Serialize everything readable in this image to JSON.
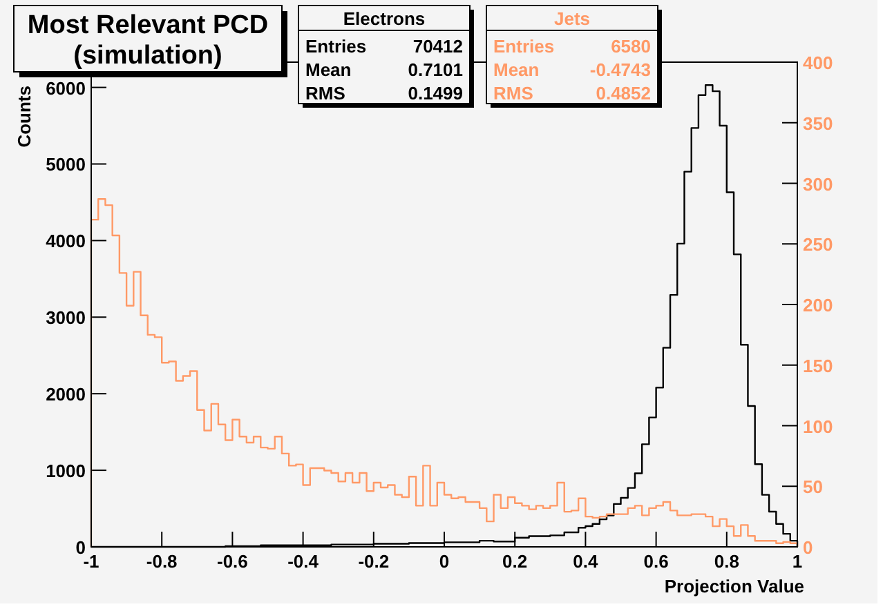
{
  "chart_data": {
    "type": "histogram",
    "title": "Most Relevant PCD\n(simulation)",
    "xlabel": "Projection Value",
    "ylabel": "Counts",
    "bins": [
      -1,
      -0.98,
      -0.96,
      -0.94,
      -0.92,
      -0.9,
      -0.88,
      -0.86,
      -0.84,
      -0.82,
      -0.8,
      -0.78,
      -0.76,
      -0.74,
      -0.72,
      -0.7,
      -0.68,
      -0.66,
      -0.64,
      -0.62,
      -0.6,
      -0.58,
      -0.56,
      -0.54,
      -0.52,
      -0.5,
      -0.48,
      -0.46,
      -0.44,
      -0.42,
      -0.4,
      -0.38,
      -0.36,
      -0.34,
      -0.32,
      -0.3,
      -0.28,
      -0.26,
      -0.24,
      -0.22,
      -0.2,
      -0.18,
      -0.16,
      -0.14,
      -0.12,
      -0.1,
      -0.08,
      -0.06,
      -0.04,
      -0.02,
      0,
      0.02,
      0.04,
      0.06,
      0.08,
      0.1,
      0.12,
      0.14,
      0.16,
      0.18,
      0.2,
      0.22,
      0.24,
      0.26,
      0.28,
      0.3,
      0.32,
      0.34,
      0.36,
      0.38,
      0.4,
      0.42,
      0.44,
      0.46,
      0.48,
      0.5,
      0.52,
      0.54,
      0.56,
      0.58,
      0.6,
      0.62,
      0.64,
      0.66,
      0.68,
      0.7,
      0.72,
      0.74,
      0.76,
      0.78,
      0.8,
      0.82,
      0.84,
      0.86,
      0.88,
      0.9,
      0.92,
      0.94,
      0.96,
      0.98,
      1
    ],
    "series": [
      {
        "name": "Electrons",
        "color": "#000000",
        "values": [
          0,
          0,
          0,
          0,
          0,
          0,
          0,
          0,
          0,
          0,
          0,
          0,
          0,
          0,
          0,
          0,
          0,
          0,
          0,
          10,
          10,
          10,
          10,
          10,
          20,
          20,
          20,
          20,
          20,
          20,
          20,
          20,
          20,
          20,
          30,
          30,
          30,
          30,
          30,
          30,
          40,
          40,
          40,
          40,
          40,
          50,
          50,
          50,
          50,
          50,
          60,
          60,
          60,
          60,
          60,
          80,
          80,
          70,
          70,
          70,
          120,
          120,
          140,
          140,
          140,
          150,
          150,
          190,
          190,
          250,
          270,
          300,
          360,
          410,
          560,
          640,
          770,
          960,
          1340,
          1690,
          2080,
          2600,
          3290,
          3960,
          4900,
          5470,
          5900,
          6030,
          5950,
          5500,
          4630,
          3820,
          2640,
          1840,
          1080,
          680,
          460,
          300,
          170,
          80
        ]
      },
      {
        "name": "Jets",
        "color": "#ff9966",
        "axis": "y2",
        "values": [
          270,
          287,
          282,
          257,
          226,
          199,
          227,
          191,
          175,
          173,
          152,
          153,
          137,
          141,
          145,
          113,
          96,
          118,
          101,
          88,
          105,
          91,
          86,
          91,
          82,
          81,
          91,
          77,
          67,
          68,
          51,
          65,
          65,
          63,
          61,
          54,
          61,
          53,
          61,
          46,
          53,
          49,
          51,
          43,
          41,
          58,
          34,
          67,
          34,
          53,
          43,
          40,
          41,
          37,
          37,
          32,
          21,
          43,
          32,
          41,
          36,
          34,
          31,
          34,
          32,
          34,
          53,
          29,
          30,
          40,
          25,
          24,
          25,
          27,
          27,
          27,
          32,
          34,
          26,
          32,
          34,
          37,
          30,
          26,
          26,
          27,
          27,
          25,
          17,
          23,
          17,
          9,
          18,
          9,
          5,
          5,
          5,
          3,
          4,
          3
        ]
      }
    ],
    "annotations": [
      "Entries 70412",
      "Mean 0.7101",
      "RMS 0.1499",
      "Entries 6580",
      "Mean -0.4743",
      "RMS 0.4852"
    ],
    "xlim": [
      -1,
      1
    ],
    "xticks": [
      -1,
      -0.8,
      -0.6,
      -0.4,
      -0.2,
      0,
      0.2,
      0.4,
      0.6,
      0.8,
      1
    ],
    "ylim": [
      0,
      6330
    ],
    "yticks": [
      0,
      1000,
      2000,
      3000,
      4000,
      5000,
      6000
    ],
    "y2lim": [
      0,
      400
    ],
    "y2ticks": [
      0,
      50,
      100,
      150,
      200,
      250,
      300,
      350,
      400
    ],
    "legend": "top",
    "grid": false
  }
}
